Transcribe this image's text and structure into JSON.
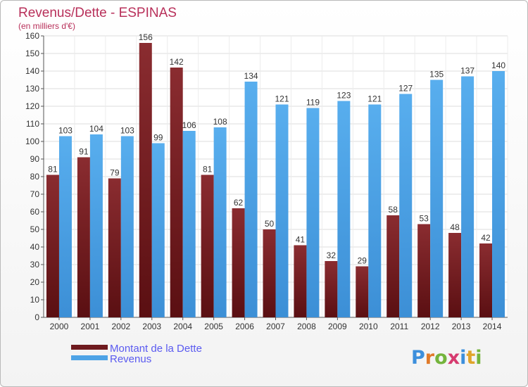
{
  "chart_data": {
    "type": "bar",
    "title": "Revenus/Dette - ESPINAS",
    "subtitle": "(en milliers d'€)",
    "categories": [
      "2000",
      "2001",
      "2002",
      "2003",
      "2004",
      "2005",
      "2006",
      "2007",
      "2008",
      "2009",
      "2010",
      "2011",
      "2012",
      "2013",
      "2014"
    ],
    "series": [
      {
        "name": "Montant de la Dette",
        "color": "#7a1e22",
        "values": [
          81,
          91,
          79,
          156,
          142,
          81,
          62,
          50,
          41,
          32,
          29,
          58,
          53,
          48,
          42
        ]
      },
      {
        "name": "Revenus",
        "color": "#4ea3e6",
        "values": [
          103,
          104,
          103,
          99,
          106,
          108,
          134,
          121,
          119,
          123,
          121,
          127,
          135,
          137,
          140
        ]
      }
    ],
    "ylim": [
      0,
      160
    ],
    "yticks": [
      0,
      10,
      20,
      30,
      40,
      50,
      60,
      70,
      80,
      90,
      100,
      110,
      120,
      130,
      140,
      150,
      160
    ],
    "grid": true,
    "legend_position": "bottom-left"
  },
  "logo": {
    "letters": [
      "P",
      "r",
      "o",
      "x",
      "i",
      "t",
      "i"
    ]
  }
}
